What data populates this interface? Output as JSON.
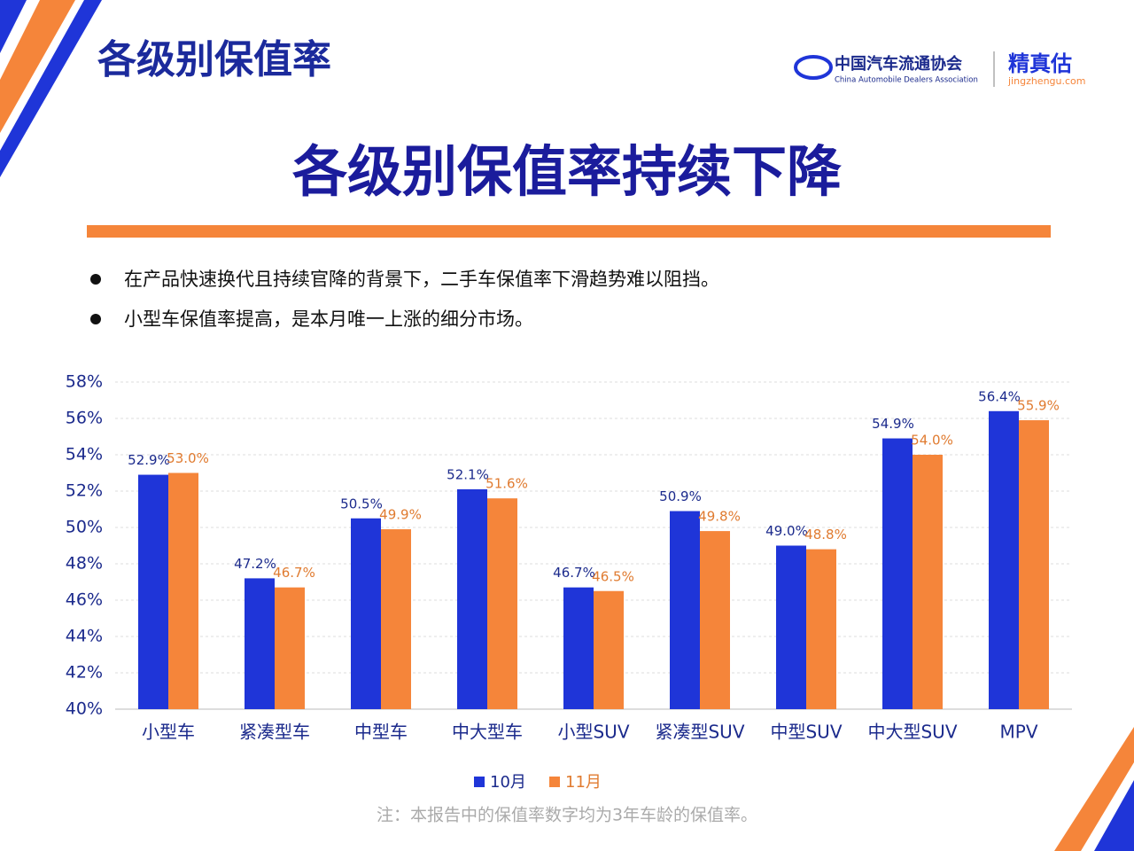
{
  "header": {
    "title": "各级别保值率",
    "org_name": "中国汽车流通协会",
    "org_name_en": "China Automobile Dealers Association",
    "brand": "精真估",
    "brand_url": "jingzhengu.com"
  },
  "headline": "各级别保值率持续下降",
  "bullets": [
    "在产品快速换代且持续官降的背景下，二手车保值率下滑趋势难以阻挡。",
    "小型车保值率提高，是本月唯一上涨的细分市场。"
  ],
  "footnote": "注：本报告中的保值率数字均为3年车龄的保值率。",
  "chart_data": {
    "type": "bar",
    "categories": [
      "小型车",
      "紧凑型车",
      "中型车",
      "中大型车",
      "小型SUV",
      "紧凑型SUV",
      "中型SUV",
      "中大型SUV",
      "MPV"
    ],
    "series": [
      {
        "name": "10月",
        "color": "#1f35d8",
        "label_color": "#1b2a8c",
        "values": [
          52.9,
          47.2,
          50.5,
          52.1,
          46.7,
          50.9,
          49.0,
          54.9,
          56.4
        ],
        "value_labels": [
          "52.9%",
          "47.2%",
          "50.5%",
          "52.1%",
          "46.7%",
          "50.9%",
          "49.0%",
          "54.9%",
          "56.4%"
        ]
      },
      {
        "name": "11月",
        "color": "#f5853a",
        "label_color": "#e07b30",
        "values": [
          53.0,
          46.7,
          49.9,
          51.6,
          46.5,
          49.8,
          48.8,
          54.0,
          55.9
        ],
        "value_labels": [
          "53.0%",
          "46.7%",
          "49.9%",
          "51.6%",
          "46.5%",
          "49.8%",
          "48.8%",
          "54.0%",
          "55.9%"
        ]
      }
    ],
    "ylim": [
      40,
      58
    ],
    "yticks": [
      {
        "value": 40,
        "label": "40%"
      },
      {
        "value": 42,
        "label": "42%"
      },
      {
        "value": 44,
        "label": "44%"
      },
      {
        "value": 46,
        "label": "46%"
      },
      {
        "value": 48,
        "label": "48%"
      },
      {
        "value": 50,
        "label": "50%"
      },
      {
        "value": 52,
        "label": "52%"
      },
      {
        "value": 54,
        "label": "54%"
      },
      {
        "value": 56,
        "label": "56%"
      },
      {
        "value": 58,
        "label": "58%"
      }
    ],
    "grid": true,
    "legend": "bottom"
  }
}
